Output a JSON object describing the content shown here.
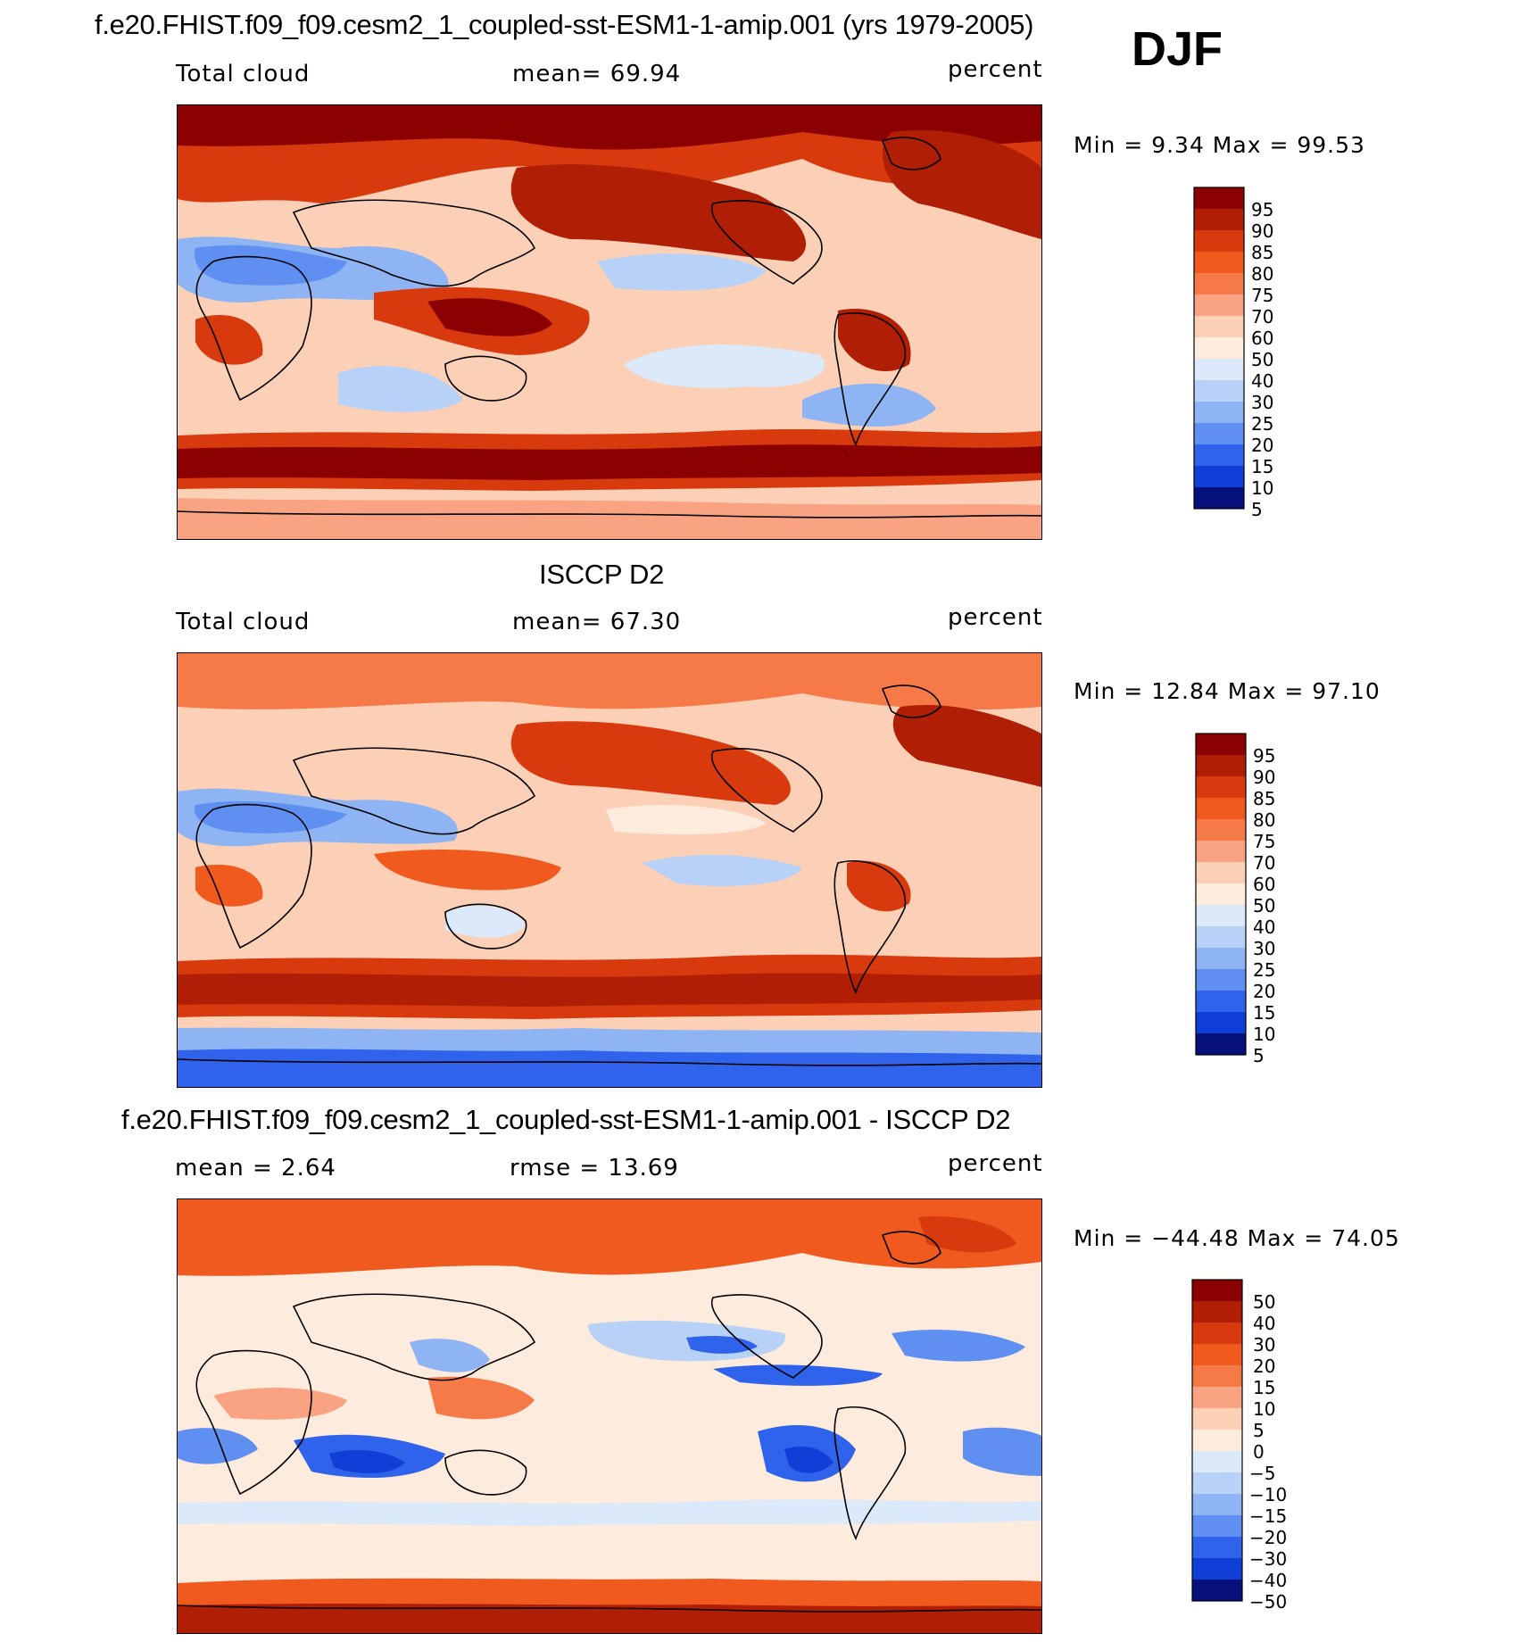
{
  "season": "DJF",
  "palette": {
    "c95": "#8b0000",
    "c90": "#b01e05",
    "c85": "#d83a0e",
    "c80": "#f05a1f",
    "c75": "#f67a47",
    "c70": "#f9a383",
    "c60": "#fcd0b6",
    "c50": "#fdebdd",
    "c40": "#dbe9fa",
    "c30": "#b7d1f7",
    "c25": "#8fb4f3",
    "c20": "#5f8ff0",
    "c15": "#2f63eb",
    "c10": "#0f3fd6",
    "c5": "#0a2aa8",
    "c0": "#05107a",
    "coast": "#000000"
  },
  "panels": [
    {
      "id": "model",
      "title": "f.e20.FHIST.f09_f09.cesm2_1_coupled-sst-ESM1-1-amip.001 (yrs 1979-2005)",
      "left_label": "Total cloud",
      "center_label": "mean=   69.94",
      "units": "percent",
      "minmax": "Min =    9.34  Max =   99.53",
      "colorbar_labels": [
        "95",
        "90",
        "85",
        "80",
        "75",
        "70",
        "60",
        "50",
        "40",
        "30",
        "25",
        "20",
        "15",
        "10",
        "5"
      ]
    },
    {
      "id": "obs",
      "title": "ISCCP D2",
      "left_label": "Total cloud",
      "center_label": "mean=   67.30",
      "units": "percent",
      "minmax": "Min =   12.84  Max =   97.10",
      "colorbar_labels": [
        "95",
        "90",
        "85",
        "80",
        "75",
        "70",
        "60",
        "50",
        "40",
        "30",
        "25",
        "20",
        "15",
        "10",
        "5"
      ]
    },
    {
      "id": "diff",
      "title": "f.e20.FHIST.f09_f09.cesm2_1_coupled-sst-ESM1-1-amip.001 - ISCCP D2",
      "left_label": "mean =    2.64",
      "center_label": "rmse =   13.69",
      "units": "percent",
      "minmax": "Min = −44.48  Max =   74.05",
      "colorbar_labels": [
        "50",
        "40",
        "30",
        "20",
        "15",
        "10",
        "5",
        "0",
        "−5",
        "−10",
        "−15",
        "−20",
        "−30",
        "−40",
        "−50"
      ]
    }
  ]
}
